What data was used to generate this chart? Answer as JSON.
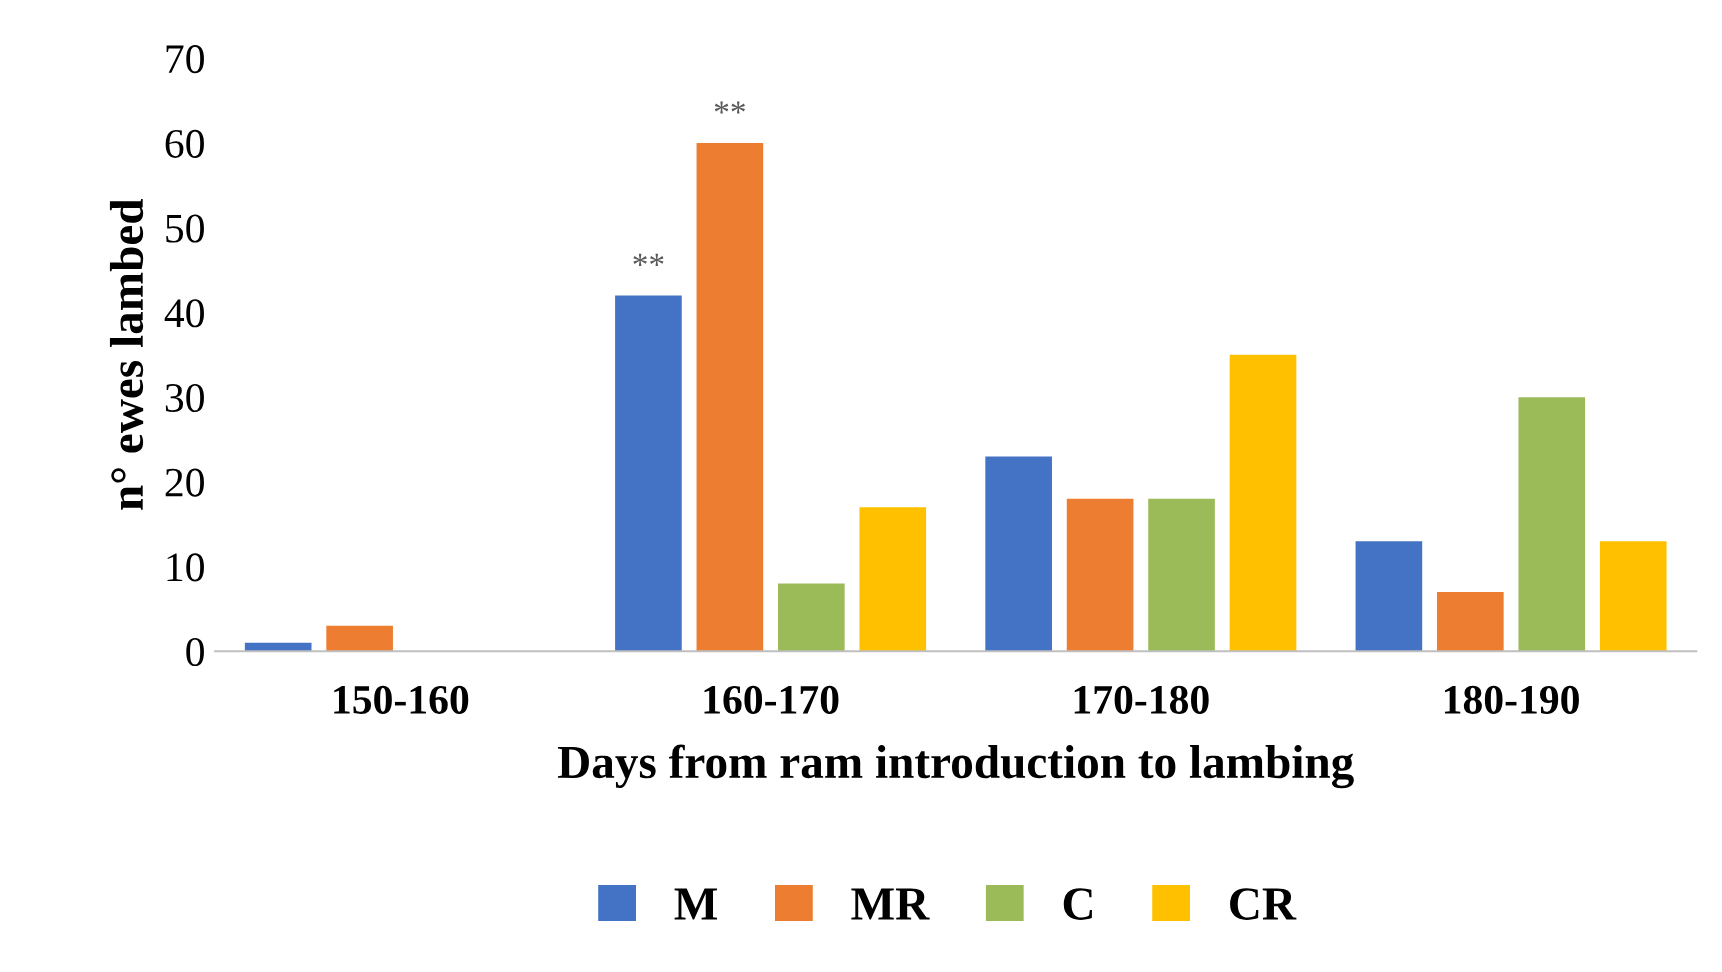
{
  "chart_data": {
    "type": "bar",
    "xlabel": "Days from ram introduction to lambing",
    "ylabel": "n° ewes lambed",
    "categories": [
      "150-160",
      "160-170",
      "170-180",
      "180-190"
    ],
    "series": [
      {
        "name": "M",
        "color": "#4472c4",
        "values": [
          1,
          42,
          23,
          13
        ]
      },
      {
        "name": "MR",
        "color": "#ed7d31",
        "values": [
          3,
          60,
          18,
          7
        ]
      },
      {
        "name": "C",
        "color": "#9bbb59",
        "values": [
          0,
          8,
          18,
          30
        ]
      },
      {
        "name": "CR",
        "color": "#ffc000",
        "values": [
          0,
          17,
          35,
          13
        ]
      }
    ],
    "ylim": [
      0,
      70
    ],
    "yticks": [
      0,
      10,
      20,
      30,
      40,
      50,
      60,
      70
    ],
    "grid": false,
    "legend": "bottom",
    "annotations": [
      "**",
      "**"
    ]
  }
}
